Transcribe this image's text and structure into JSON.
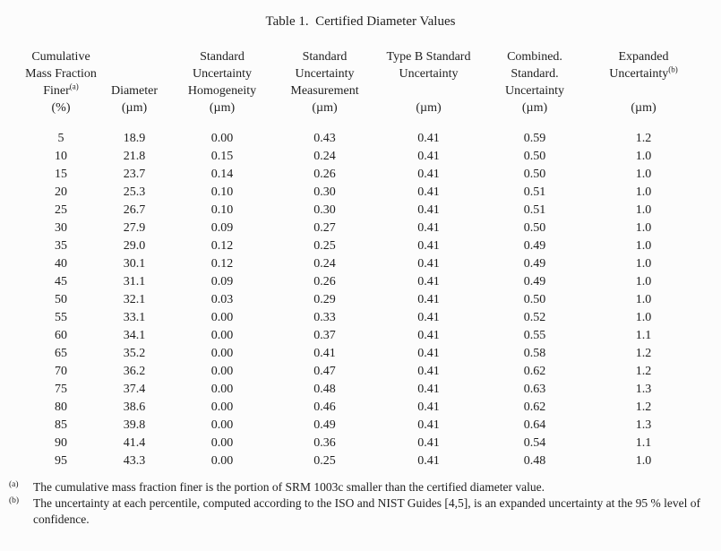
{
  "title": "Table 1.  Certified Diameter Values",
  "table": {
    "columns": [
      {
        "name_lines": [
          "Cumulative",
          "Mass Fraction",
          "Finer"
        ],
        "sup": "(a)",
        "unit": "(%)"
      },
      {
        "name_lines": [
          "Diameter"
        ],
        "unit": "(µm)",
        "valign": "bottom"
      },
      {
        "name_lines": [
          "Standard",
          "Uncertainty",
          "Homogeneity"
        ],
        "unit": "(µm)"
      },
      {
        "name_lines": [
          "Standard",
          "Uncertainty",
          "Measurement"
        ],
        "unit": "(µm)"
      },
      {
        "name_lines": [
          "Type B Standard",
          "Uncertainty"
        ],
        "unit": "(µm)"
      },
      {
        "name_lines": [
          "Combined.",
          "Standard.",
          "Uncertainty"
        ],
        "unit": "(µm)"
      },
      {
        "name_lines": [
          "Expanded",
          "Uncertainty"
        ],
        "sup": "(b)",
        "unit": "(µm)"
      }
    ],
    "rows": [
      [
        "5",
        "18.9",
        "0.00",
        "0.43",
        "0.41",
        "0.59",
        "1.2"
      ],
      [
        "10",
        "21.8",
        "0.15",
        "0.24",
        "0.41",
        "0.50",
        "1.0"
      ],
      [
        "15",
        "23.7",
        "0.14",
        "0.26",
        "0.41",
        "0.50",
        "1.0"
      ],
      [
        "20",
        "25.3",
        "0.10",
        "0.30",
        "0.41",
        "0.51",
        "1.0"
      ],
      [
        "25",
        "26.7",
        "0.10",
        "0.30",
        "0.41",
        "0.51",
        "1.0"
      ],
      [
        "30",
        "27.9",
        "0.09",
        "0.27",
        "0.41",
        "0.50",
        "1.0"
      ],
      [
        "35",
        "29.0",
        "0.12",
        "0.25",
        "0.41",
        "0.49",
        "1.0"
      ],
      [
        "40",
        "30.1",
        "0.12",
        "0.24",
        "0.41",
        "0.49",
        "1.0"
      ],
      [
        "45",
        "31.1",
        "0.09",
        "0.26",
        "0.41",
        "0.49",
        "1.0"
      ],
      [
        "50",
        "32.1",
        "0.03",
        "0.29",
        "0.41",
        "0.50",
        "1.0"
      ],
      [
        "55",
        "33.1",
        "0.00",
        "0.33",
        "0.41",
        "0.52",
        "1.0"
      ],
      [
        "60",
        "34.1",
        "0.00",
        "0.37",
        "0.41",
        "0.55",
        "1.1"
      ],
      [
        "65",
        "35.2",
        "0.00",
        "0.41",
        "0.41",
        "0.58",
        "1.2"
      ],
      [
        "70",
        "36.2",
        "0.00",
        "0.47",
        "0.41",
        "0.62",
        "1.2"
      ],
      [
        "75",
        "37.4",
        "0.00",
        "0.48",
        "0.41",
        "0.63",
        "1.3"
      ],
      [
        "80",
        "38.6",
        "0.00",
        "0.46",
        "0.41",
        "0.62",
        "1.2"
      ],
      [
        "85",
        "39.8",
        "0.00",
        "0.49",
        "0.41",
        "0.64",
        "1.3"
      ],
      [
        "90",
        "41.4",
        "0.00",
        "0.36",
        "0.41",
        "0.54",
        "1.1"
      ],
      [
        "95",
        "43.3",
        "0.00",
        "0.25",
        "0.41",
        "0.48",
        "1.0"
      ]
    ]
  },
  "footnotes": [
    {
      "marker": "(a)",
      "text": "The cumulative mass fraction finer is the portion of SRM 1003c smaller than the certified diameter value."
    },
    {
      "marker": "(b)",
      "text": "The uncertainty at each percentile, computed according to the ISO and NIST Guides [4,5], is an expanded uncertainty at the 95 % level of confidence."
    }
  ]
}
